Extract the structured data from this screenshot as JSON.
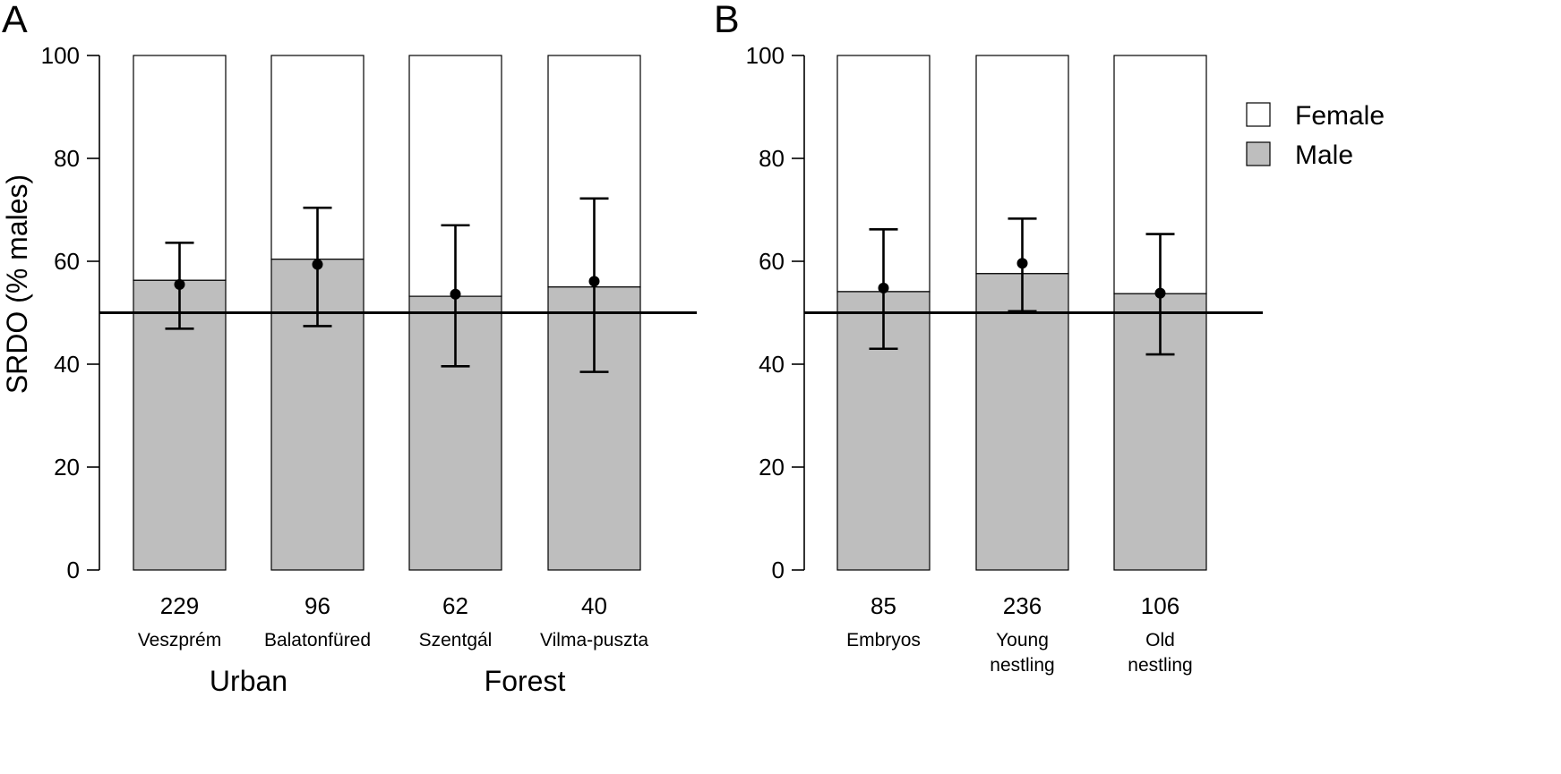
{
  "chart_data": [
    {
      "panel": "A",
      "type": "bar",
      "stacked_percent": true,
      "ylabel": "SRDO (% males)",
      "ylim": [
        0,
        100
      ],
      "yticks": [
        "0",
        "20",
        "40",
        "60",
        "80",
        "100"
      ],
      "reference_line": 50,
      "categories": [
        "Veszprém",
        "Balatonfüred",
        "Szentgál",
        "Vilma-puszta"
      ],
      "sample_sizes": [
        "229",
        "96",
        "62",
        "40"
      ],
      "groups": [
        {
          "label": "Urban",
          "from": 0,
          "to": 1
        },
        {
          "label": "Forest",
          "from": 2,
          "to": 3
        }
      ],
      "series": [
        {
          "name": "Male",
          "values": [
            56.3,
            60.4,
            53.2,
            55.0
          ],
          "color": "#bebebe"
        },
        {
          "name": "Female",
          "values": [
            43.7,
            39.6,
            46.8,
            45.0
          ],
          "color": "#ffffff"
        }
      ],
      "estimates": [
        {
          "mean": 55.5,
          "lower": 46.9,
          "upper": 63.6
        },
        {
          "mean": 59.4,
          "lower": 47.4,
          "upper": 70.4
        },
        {
          "mean": 53.6,
          "lower": 39.6,
          "upper": 67.0
        },
        {
          "mean": 56.1,
          "lower": 38.5,
          "upper": 72.2
        }
      ]
    },
    {
      "panel": "B",
      "type": "bar",
      "stacked_percent": true,
      "ylim": [
        0,
        100
      ],
      "yticks": [
        "0",
        "20",
        "40",
        "60",
        "80",
        "100"
      ],
      "reference_line": 50,
      "categories": [
        [
          "Embryos"
        ],
        [
          "Young",
          "nestling"
        ],
        [
          "Old",
          "nestling"
        ]
      ],
      "sample_sizes": [
        "85",
        "236",
        "106"
      ],
      "series": [
        {
          "name": "Male",
          "values": [
            54.1,
            57.6,
            53.7
          ],
          "color": "#bebebe"
        },
        {
          "name": "Female",
          "values": [
            45.9,
            42.4,
            46.3
          ],
          "color": "#ffffff"
        }
      ],
      "estimates": [
        {
          "mean": 54.8,
          "lower": 43.0,
          "upper": 66.2
        },
        {
          "mean": 59.6,
          "lower": 50.3,
          "upper": 68.3
        },
        {
          "mean": 53.8,
          "lower": 41.9,
          "upper": 65.3
        }
      ]
    }
  ],
  "legend": {
    "placement": "top-right",
    "items": [
      {
        "label": "Female",
        "color": "#ffffff"
      },
      {
        "label": "Male",
        "color": "#bebebe"
      }
    ]
  }
}
